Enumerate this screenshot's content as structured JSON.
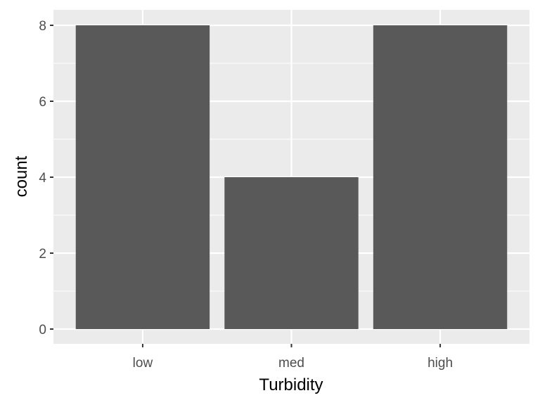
{
  "chart_data": {
    "type": "bar",
    "categories": [
      "low",
      "med",
      "high"
    ],
    "values": [
      8,
      4,
      8
    ],
    "title": "",
    "xlabel": "Turbidity",
    "ylabel": "count",
    "ylim": [
      0,
      8.4
    ],
    "yticks": [
      0,
      2,
      4,
      6,
      8
    ],
    "grid": true,
    "legend": "none",
    "colors": {
      "bar": "#595959",
      "panel": "#ebebeb",
      "grid": "#ffffff",
      "tick": "#333333"
    }
  }
}
